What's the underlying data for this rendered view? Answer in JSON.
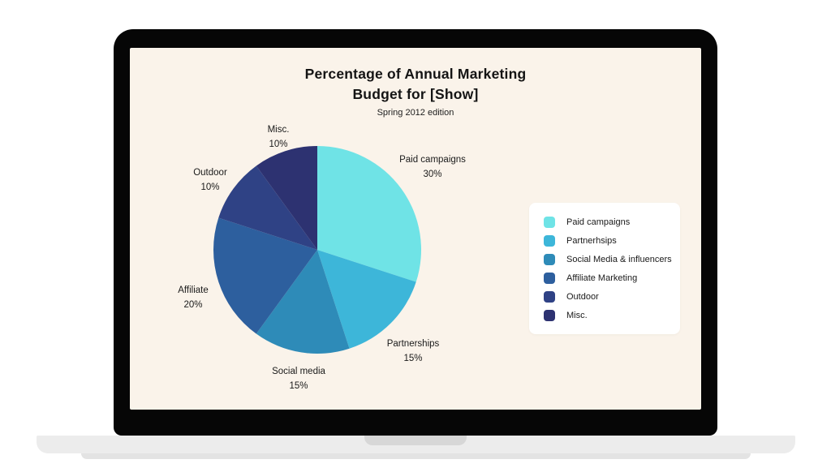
{
  "laptop": {
    "frame_color": "#060606",
    "screen_bg": "#faf3ea",
    "base_color": "#ececec",
    "notch_color": "#d7d7d7"
  },
  "chart_data": {
    "type": "pie",
    "title": "Percentage of Annual Marketing Budget for [Show]",
    "title_line1": "Percentage of Annual Marketing",
    "title_line2": "Budget for [Show]",
    "subtitle": "Spring 2012 edition",
    "direction": "clockwise",
    "start_angle_deg": 0,
    "slices": [
      {
        "label": "Paid campaigns",
        "value": 30,
        "pct_label": "30%",
        "color": "#6fe3e6"
      },
      {
        "label": "Partnerships",
        "value": 15,
        "pct_label": "15%",
        "color": "#3db6d9"
      },
      {
        "label": "Social media",
        "value": 15,
        "pct_label": "15%",
        "color": "#2e8bb8"
      },
      {
        "label": "Affiliate",
        "value": 20,
        "pct_label": "20%",
        "color": "#2d5f9e"
      },
      {
        "label": "Outdoor",
        "value": 10,
        "pct_label": "10%",
        "color": "#2f4285"
      },
      {
        "label": "Misc.",
        "value": 10,
        "pct_label": "10%",
        "color": "#2d3271"
      }
    ],
    "legend": {
      "position": "right",
      "items": [
        {
          "label": "Paid campaigns",
          "color": "#6fe3e6"
        },
        {
          "label": "Partnerhsips",
          "color": "#3db6d9"
        },
        {
          "label": "Social Media & influencers",
          "color": "#2e8bb8"
        },
        {
          "label": "Affiliate Marketing",
          "color": "#2d5f9e"
        },
        {
          "label": "Outdoor",
          "color": "#2f4285"
        },
        {
          "label": "Misc.",
          "color": "#2d3271"
        }
      ]
    }
  }
}
